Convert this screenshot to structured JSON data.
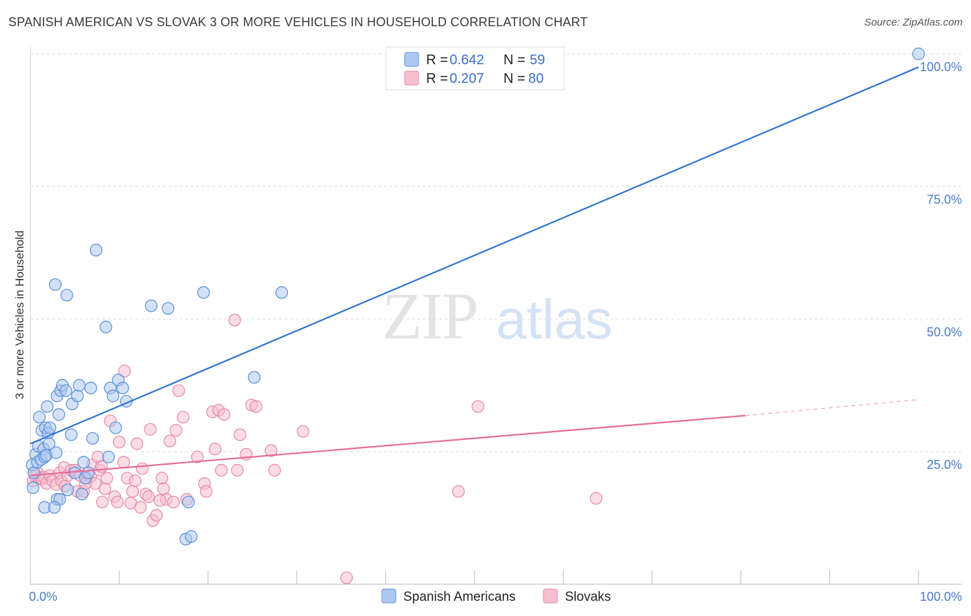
{
  "title": "SPANISH AMERICAN VS SLOVAK 3 OR MORE VEHICLES IN HOUSEHOLD CORRELATION CHART",
  "source": "Source: ZipAtlas.com",
  "watermark": {
    "zip": "ZIP",
    "atlas": "atlas"
  },
  "colors": {
    "blue_fill": "#aec9ef",
    "blue_stroke": "#5b8fd6",
    "blue_line": "#2f72cf",
    "pink_fill": "#f6bfd0",
    "pink_stroke": "#e58aa8",
    "pink_line": "#e66c99",
    "grid": "#dddddd",
    "axis_text": "#4a7cc6"
  },
  "legend": {
    "rows": [
      {
        "r_label": "R =",
        "r_value": "0.642",
        "n_label": "N =",
        "n_value": "59"
      },
      {
        "r_label": "R =",
        "r_value": "0.207",
        "n_label": "N =",
        "n_value": "80"
      }
    ]
  },
  "bottom_legend": [
    "Spanish Americans",
    "Slovaks"
  ],
  "chart_data": {
    "type": "scatter",
    "title": "SPANISH AMERICAN VS SLOVAK 3 OR MORE VEHICLES IN HOUSEHOLD CORRELATION CHART",
    "xlabel": "",
    "ylabel": "3 or more Vehicles in Household",
    "xlim": [
      0,
      100
    ],
    "ylim": [
      0,
      100
    ],
    "x_tick_labels": [
      "0.0%",
      "100.0%"
    ],
    "y_tick_labels": [
      "25.0%",
      "50.0%",
      "75.0%",
      "100.0%"
    ],
    "y_ticks": [
      25,
      50,
      75,
      100
    ],
    "grid": true,
    "legend_position": "top-center",
    "series": [
      {
        "name": "Spanish Americans",
        "r": 0.642,
        "n": 59,
        "trend": {
          "x": [
            0,
            100
          ],
          "y": [
            26.5,
            97.5
          ],
          "dashed_from": null
        },
        "points": [
          [
            0.2,
            22.5
          ],
          [
            0.3,
            18.2
          ],
          [
            0.4,
            21.0
          ],
          [
            0.6,
            24.5
          ],
          [
            0.8,
            23.0
          ],
          [
            0.9,
            26.0
          ],
          [
            1.0,
            31.5
          ],
          [
            1.2,
            23.5
          ],
          [
            1.3,
            29.0
          ],
          [
            1.5,
            25.5
          ],
          [
            1.6,
            24.0
          ],
          [
            1.7,
            29.5
          ],
          [
            1.8,
            24.3
          ],
          [
            1.9,
            33.5
          ],
          [
            2.0,
            28.5
          ],
          [
            2.1,
            26.5
          ],
          [
            2.2,
            29.5
          ],
          [
            2.8,
            56.5
          ],
          [
            2.9,
            24.8
          ],
          [
            3.0,
            35.5
          ],
          [
            3.0,
            16.0
          ],
          [
            3.2,
            32.0
          ],
          [
            3.3,
            16.0
          ],
          [
            3.4,
            36.5
          ],
          [
            3.6,
            37.5
          ],
          [
            4.0,
            36.5
          ],
          [
            4.1,
            54.5
          ],
          [
            4.2,
            17.8
          ],
          [
            4.6,
            28.2
          ],
          [
            4.7,
            34.0
          ],
          [
            5.3,
            35.5
          ],
          [
            5.5,
            37.5
          ],
          [
            5.8,
            17.0
          ],
          [
            6.0,
            23.0
          ],
          [
            6.2,
            20.0
          ],
          [
            6.8,
            37.0
          ],
          [
            7.0,
            27.5
          ],
          [
            7.4,
            63.0
          ],
          [
            8.5,
            48.5
          ],
          [
            8.8,
            24.0
          ],
          [
            9.0,
            37.0
          ],
          [
            9.3,
            35.5
          ],
          [
            9.6,
            29.5
          ],
          [
            9.9,
            38.5
          ],
          [
            10.4,
            37.0
          ],
          [
            10.8,
            34.5
          ],
          [
            13.6,
            52.5
          ],
          [
            15.5,
            52.0
          ],
          [
            17.5,
            8.5
          ],
          [
            17.8,
            15.5
          ],
          [
            18.1,
            9.0
          ],
          [
            19.5,
            55.0
          ],
          [
            25.2,
            39.0
          ],
          [
            28.3,
            55.0
          ],
          [
            1.6,
            14.5
          ],
          [
            2.7,
            14.5
          ],
          [
            5.0,
            21.0
          ],
          [
            6.5,
            21.0
          ],
          [
            100,
            100
          ]
        ]
      },
      {
        "name": "Slovaks",
        "r": 0.207,
        "n": 80,
        "trend": {
          "x": [
            0,
            80.5,
            100
          ],
          "y": [
            20.5,
            31.8,
            34.8
          ],
          "dashed_from": 80.5
        },
        "points": [
          [
            0.3,
            19.5
          ],
          [
            0.5,
            20.5
          ],
          [
            0.8,
            21.0
          ],
          [
            1.0,
            20.0
          ],
          [
            1.3,
            19.8
          ],
          [
            1.5,
            20.2
          ],
          [
            1.8,
            19.0
          ],
          [
            2.2,
            20.5
          ],
          [
            2.5,
            19.5
          ],
          [
            2.9,
            18.8
          ],
          [
            3.3,
            21.0
          ],
          [
            3.5,
            19.5
          ],
          [
            3.8,
            22.0
          ],
          [
            4.2,
            20.5
          ],
          [
            4.6,
            21.5
          ],
          [
            5.0,
            21.5
          ],
          [
            5.3,
            17.5
          ],
          [
            5.6,
            20.5
          ],
          [
            6.0,
            17.5
          ],
          [
            6.4,
            20.0
          ],
          [
            6.8,
            20.3
          ],
          [
            7.0,
            22.5
          ],
          [
            7.3,
            19.0
          ],
          [
            7.6,
            24.0
          ],
          [
            7.8,
            21.5
          ],
          [
            8.1,
            15.5
          ],
          [
            8.4,
            18.0
          ],
          [
            8.6,
            20.0
          ],
          [
            9.0,
            30.8
          ],
          [
            9.5,
            16.5
          ],
          [
            9.8,
            15.5
          ],
          [
            10.0,
            26.8
          ],
          [
            10.6,
            40.2
          ],
          [
            10.5,
            23.0
          ],
          [
            10.9,
            20.0
          ],
          [
            11.3,
            15.3
          ],
          [
            11.8,
            19.5
          ],
          [
            12.0,
            26.5
          ],
          [
            12.4,
            14.5
          ],
          [
            12.6,
            21.8
          ],
          [
            13.0,
            17.0
          ],
          [
            13.3,
            16.5
          ],
          [
            13.5,
            29.2
          ],
          [
            13.8,
            12.0
          ],
          [
            14.2,
            13.0
          ],
          [
            14.8,
            20.0
          ],
          [
            15.0,
            18.0
          ],
          [
            15.3,
            16.0
          ],
          [
            15.7,
            27.0
          ],
          [
            16.1,
            15.5
          ],
          [
            16.4,
            29.0
          ],
          [
            16.7,
            36.5
          ],
          [
            17.2,
            31.5
          ],
          [
            17.6,
            16.0
          ],
          [
            18.8,
            24.0
          ],
          [
            19.6,
            19.0
          ],
          [
            19.8,
            17.5
          ],
          [
            20.5,
            32.5
          ],
          [
            20.8,
            25.5
          ],
          [
            21.2,
            32.8
          ],
          [
            21.5,
            21.5
          ],
          [
            21.8,
            32.0
          ],
          [
            23.0,
            49.8
          ],
          [
            23.3,
            21.5
          ],
          [
            23.6,
            28.2
          ],
          [
            24.3,
            24.5
          ],
          [
            24.9,
            33.8
          ],
          [
            25.4,
            33.5
          ],
          [
            27.1,
            25.2
          ],
          [
            27.5,
            21.5
          ],
          [
            30.7,
            28.8
          ],
          [
            35.6,
            1.2
          ],
          [
            48.2,
            17.5
          ],
          [
            50.4,
            33.5
          ],
          [
            63.7,
            16.2
          ],
          [
            14.6,
            15.8
          ],
          [
            8.0,
            22.2
          ],
          [
            3.9,
            18.5
          ],
          [
            11.5,
            17.5
          ],
          [
            6.2,
            19.0
          ]
        ]
      }
    ]
  }
}
